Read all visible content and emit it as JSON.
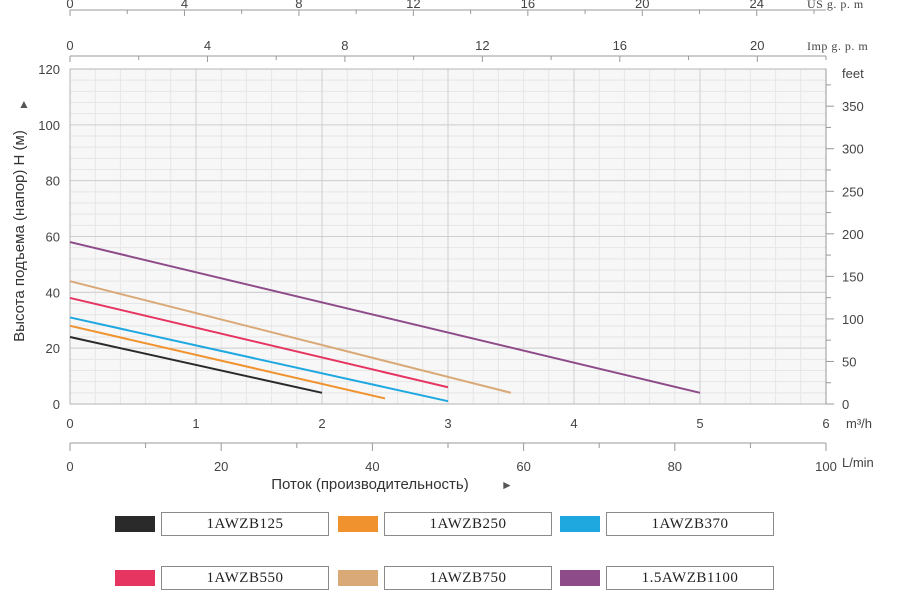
{
  "chart_data": {
    "type": "line",
    "ylabel": "Высота подъема (напор) Н (м)",
    "xlabel": "Поток (производительность)",
    "y_ticks": [
      0,
      20,
      40,
      60,
      80,
      100,
      120
    ],
    "ylim": [
      0,
      120
    ],
    "feet_axis": {
      "unit": "feet",
      "ticks": [
        0,
        50,
        100,
        150,
        200,
        250,
        300,
        350
      ]
    },
    "m3h_axis": {
      "unit": "m³/h",
      "ticks": [
        0,
        1,
        2,
        3,
        4,
        5,
        6
      ],
      "range": [
        0,
        6
      ]
    },
    "lmin_axis": {
      "unit": "L/min",
      "ticks": [
        0,
        20,
        40,
        60,
        80,
        100
      ],
      "range": [
        0,
        100
      ]
    },
    "us_axis": {
      "unit": "US  g. p. m",
      "ticks": [
        0,
        4,
        8,
        12,
        16,
        20,
        24
      ]
    },
    "imp_axis": {
      "unit": "Imp  g. p. m",
      "ticks": [
        0,
        4,
        8,
        12,
        16,
        20
      ]
    },
    "grid": true,
    "series": [
      {
        "name": "1AWZB125",
        "color": "#2a2a2a",
        "x": [
          0,
          2.0
        ],
        "y": [
          24,
          4
        ]
      },
      {
        "name": "1AWZB250",
        "color": "#f0922d",
        "x": [
          0,
          2.5
        ],
        "y": [
          28,
          2
        ]
      },
      {
        "name": "1AWZB370",
        "color": "#1fa8e0",
        "x": [
          0,
          3.0
        ],
        "y": [
          31,
          1
        ]
      },
      {
        "name": "1AWZB550",
        "color": "#e63561",
        "x": [
          0,
          3.0
        ],
        "y": [
          38,
          6
        ]
      },
      {
        "name": "1AWZB750",
        "color": "#d9a977",
        "x": [
          0,
          3.5
        ],
        "y": [
          44,
          4
        ]
      },
      {
        "name": "1.5AWZB1100",
        "color": "#8e4b8a",
        "x": [
          0,
          5.0
        ],
        "y": [
          58,
          4
        ]
      }
    ]
  }
}
